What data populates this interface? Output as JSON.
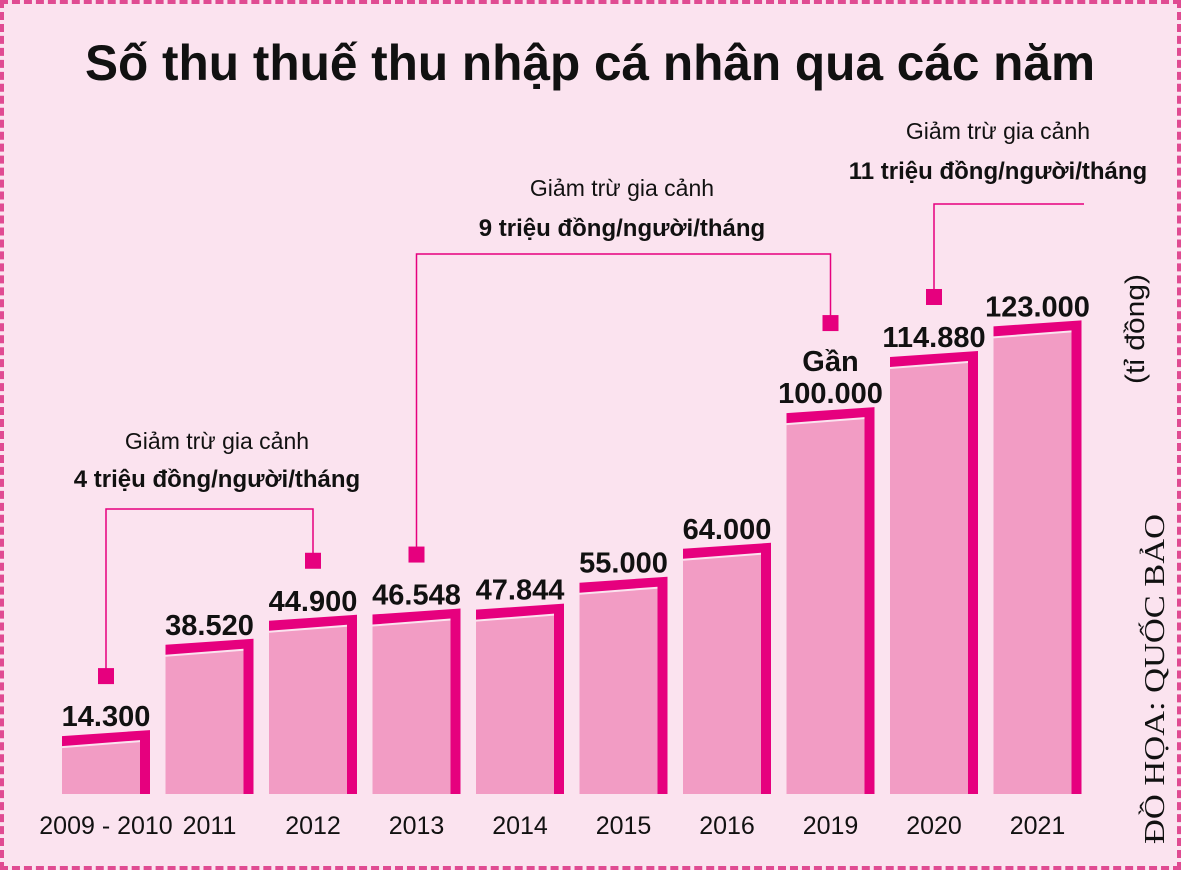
{
  "chart_data": {
    "type": "bar",
    "title": "Số thu thuế thu nhập cá nhân qua các năm",
    "unit_label": "(tỉ đồng)",
    "categories": [
      "2009 - 2010",
      "2011",
      "2012",
      "2013",
      "2014",
      "2015",
      "2016",
      "2019",
      "2020",
      "2021"
    ],
    "values": [
      14300,
      38520,
      44900,
      46548,
      47844,
      55000,
      64000,
      100000,
      114880,
      123000
    ],
    "value_labels": [
      "14.300",
      "38.520",
      "44.900",
      "46.548",
      "47.844",
      "55.000",
      "64.000",
      "100.000",
      "114.880",
      "123.000"
    ],
    "value_prefix_2019": "Gần",
    "ylim": [
      0,
      130000
    ],
    "annotations": [
      {
        "line1": "Giảm trừ gia cảnh",
        "line2": "4 triệu đồng/người/tháng",
        "from": "2009 - 2010",
        "to": "2012"
      },
      {
        "line1": "Giảm trừ gia cảnh",
        "line2": "9 triệu đồng/người/tháng",
        "from": "2013",
        "to": "2019"
      },
      {
        "line1": "Giảm trừ gia cảnh",
        "line2": "11 triệu đồng/người/tháng",
        "from": "2020",
        "to": "2021"
      }
    ],
    "credit": "ĐỒ HỌA: QUỐC BẢO"
  },
  "colors": {
    "background": "#fbe3ef",
    "bar_face": "#f29cc4",
    "bar_accent": "#e6007e",
    "text": "#111111"
  }
}
